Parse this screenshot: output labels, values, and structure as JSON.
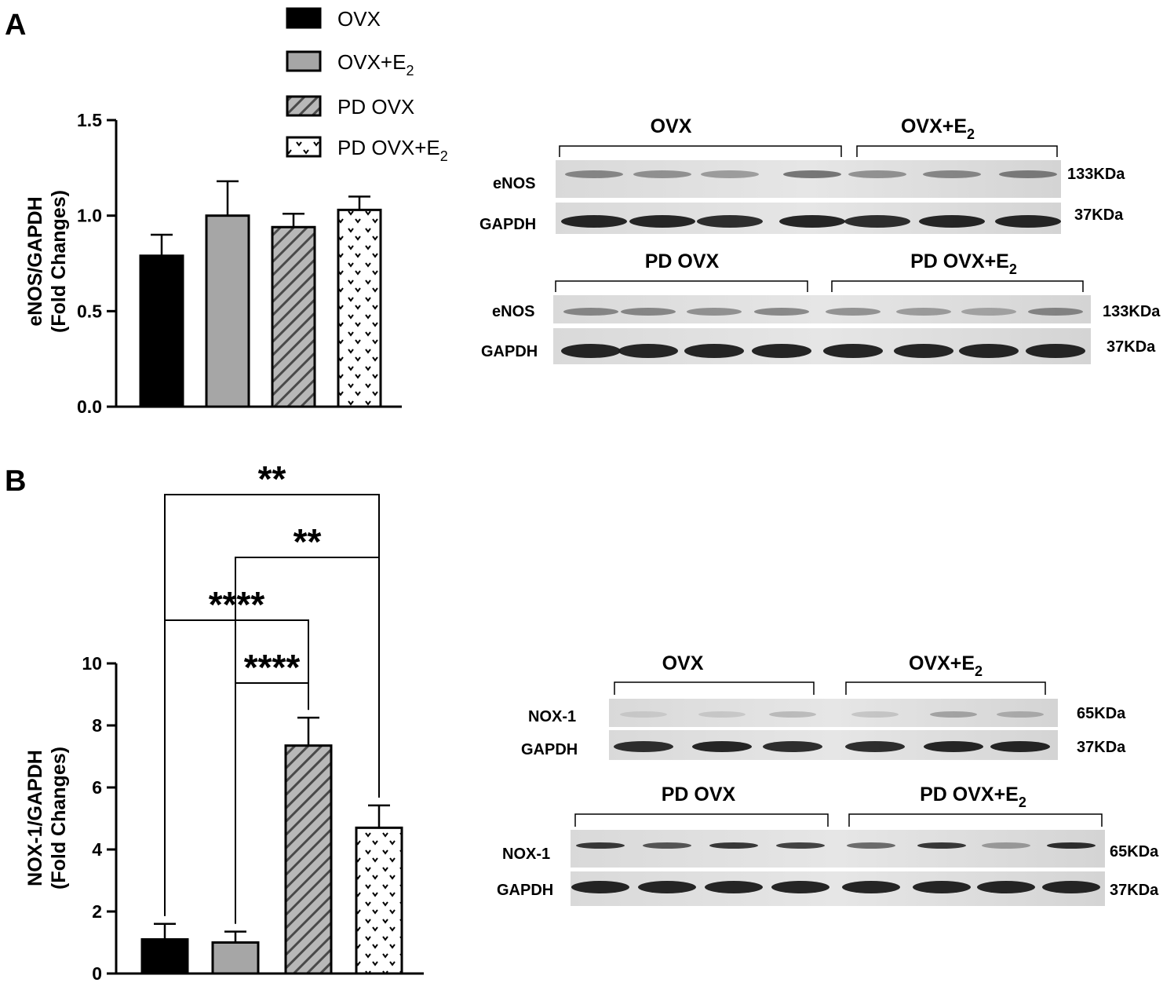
{
  "panels": {
    "a": "A",
    "b": "B"
  },
  "legend": [
    {
      "label": "OVX",
      "sub": ""
    },
    {
      "label": "OVX+E",
      "sub": "2"
    },
    {
      "label": "PD OVX",
      "sub": ""
    },
    {
      "label": "PD OVX+E",
      "sub": "2"
    }
  ],
  "colors": {
    "ovx": "#000000",
    "ovx_e2": "#a6a6a6",
    "pd_ovx": "#8c8c8c",
    "pd_ovx_e2": "#ffffff"
  },
  "chart_data": [
    {
      "type": "bar",
      "panel": "A",
      "categories": [
        "OVX",
        "OVX+E2",
        "PD OVX",
        "PD OVX+E2"
      ],
      "values": [
        0.79,
        1.0,
        0.94,
        1.03
      ],
      "errors": [
        0.11,
        0.18,
        0.07,
        0.07
      ],
      "ylabel_line1": "eNOS/GAPDH",
      "ylabel_line2": "(Fold Changes)",
      "ylim": [
        0,
        1.5
      ],
      "yticks": [
        "0.0",
        "0.5",
        "1.0",
        "1.5"
      ],
      "significance": []
    },
    {
      "type": "bar",
      "panel": "B",
      "categories": [
        "OVX",
        "OVX+E2",
        "PD OVX",
        "PD OVX+E2"
      ],
      "values": [
        1.1,
        1.0,
        7.35,
        4.7
      ],
      "errors": [
        0.5,
        0.35,
        0.9,
        0.72
      ],
      "ylabel_line1": "NOX-1/GAPDH",
      "ylabel_line2": "(Fold Changes)",
      "ylim": [
        0,
        10
      ],
      "yticks": [
        "0",
        "2",
        "4",
        "6",
        "8",
        "10"
      ],
      "significance": [
        {
          "from": "OVX",
          "to": "PD OVX+E2",
          "label": "**"
        },
        {
          "from": "OVX+E2",
          "to": "PD OVX+E2",
          "label": "**"
        },
        {
          "from": "OVX",
          "to": "PD OVX",
          "label": "****"
        },
        {
          "from": "OVX+E2",
          "to": "PD OVX",
          "label": "****"
        }
      ]
    }
  ],
  "blots": {
    "a_top": {
      "left_group": "OVX",
      "right_group": "OVX+E",
      "right_sub": "2",
      "row1": "eNOS",
      "row2": "GAPDH",
      "kda1": "133KDa",
      "kda2": "37KDa"
    },
    "a_bottom": {
      "left_group": "PD OVX",
      "right_group": "PD OVX+E",
      "right_sub": "2",
      "row1": "eNOS",
      "row2": "GAPDH",
      "kda1": "133KDa",
      "kda2": "37KDa"
    },
    "b_top": {
      "left_group": "OVX",
      "right_group": "OVX+E",
      "right_sub": "2",
      "row1": "NOX-1",
      "row2": "GAPDH",
      "kda1": "65KDa",
      "kda2": "37KDa"
    },
    "b_bottom": {
      "left_group": "PD OVX",
      "right_group": "PD OVX+E",
      "right_sub": "2",
      "row1": "NOX-1",
      "row2": "GAPDH",
      "kda1": "65KDa",
      "kda2": "37KDa"
    }
  }
}
